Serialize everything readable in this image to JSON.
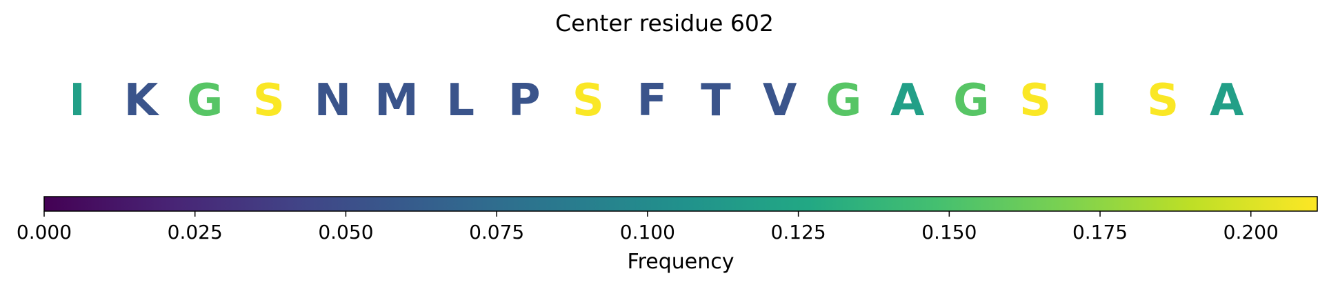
{
  "chart_data": {
    "type": "sequence-logo",
    "title": "Center residue 602",
    "residues": [
      {
        "letter": "I",
        "frequency": 0.118
      },
      {
        "letter": "K",
        "frequency": 0.055
      },
      {
        "letter": "G",
        "frequency": 0.155
      },
      {
        "letter": "S",
        "frequency": 0.21
      },
      {
        "letter": "N",
        "frequency": 0.055
      },
      {
        "letter": "M",
        "frequency": 0.055
      },
      {
        "letter": "L",
        "frequency": 0.055
      },
      {
        "letter": "P",
        "frequency": 0.055
      },
      {
        "letter": "S",
        "frequency": 0.21
      },
      {
        "letter": "F",
        "frequency": 0.055
      },
      {
        "letter": "T",
        "frequency": 0.055
      },
      {
        "letter": "V",
        "frequency": 0.055
      },
      {
        "letter": "G",
        "frequency": 0.155
      },
      {
        "letter": "A",
        "frequency": 0.118
      },
      {
        "letter": "G",
        "frequency": 0.155
      },
      {
        "letter": "S",
        "frequency": 0.21
      },
      {
        "letter": "I",
        "frequency": 0.118
      },
      {
        "letter": "S",
        "frequency": 0.21
      },
      {
        "letter": "A",
        "frequency": 0.118
      }
    ],
    "colorbar": {
      "label": "Frequency",
      "colormap": "viridis",
      "range": [
        0,
        0.211
      ],
      "ticks": [
        0.0,
        0.025,
        0.05,
        0.075,
        0.1,
        0.125,
        0.15,
        0.175,
        0.2
      ],
      "tick_labels": [
        "0.000",
        "0.025",
        "0.050",
        "0.075",
        "0.100",
        "0.125",
        "0.150",
        "0.175",
        "0.200"
      ]
    }
  }
}
